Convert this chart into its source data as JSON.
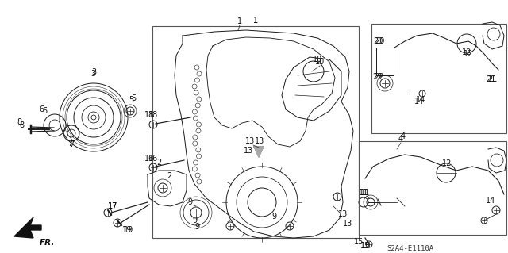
{
  "background_color": "#ffffff",
  "line_color": "#1a1a1a",
  "diagram_id": "S2A4-E1110A",
  "figsize": [
    6.4,
    3.19
  ],
  "dpi": 100,
  "gray": "#444444",
  "lgray": "#888888",
  "dgray": "#222222"
}
